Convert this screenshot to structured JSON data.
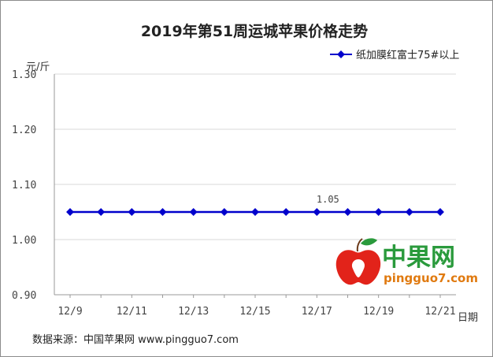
{
  "chart_data": {
    "type": "line",
    "title": "2019年第51周运城苹果价格走势",
    "ylabel": "元/斤",
    "xlabel": "日期",
    "ylim": [
      0.9,
      1.3
    ],
    "yticks": [
      "0.90",
      "1.00",
      "1.10",
      "1.20",
      "1.30"
    ],
    "ytick_values": [
      0.9,
      1.0,
      1.1,
      1.2,
      1.3
    ],
    "categories": [
      "12/9",
      "12/10",
      "12/11",
      "12/12",
      "12/13",
      "12/14",
      "12/15",
      "12/16",
      "12/17",
      "12/18",
      "12/19",
      "12/20",
      "12/21"
    ],
    "xtick_labels": [
      "12/9",
      "",
      "12/11",
      "",
      "12/13",
      "",
      "12/15",
      "",
      "12/17",
      "",
      "12/19",
      "",
      "12/21"
    ],
    "series": [
      {
        "name": "纸加膜红富士75#以上",
        "color": "#0000cc",
        "values": [
          1.05,
          1.05,
          1.05,
          1.05,
          1.05,
          1.05,
          1.05,
          1.05,
          1.05,
          1.05,
          1.05,
          1.05,
          1.05
        ],
        "data_label": "1.05",
        "data_label_index": 8
      }
    ],
    "legend": "top-right",
    "grid": "horizontal"
  },
  "source": "数据来源：中国苹果网 www.pingguo7.com",
  "logo": {
    "name": "中果网",
    "url": "pingguo7.com"
  },
  "colors": {
    "line": "#0000cc",
    "grid": "#d9d9d9",
    "axis": "#999999"
  }
}
